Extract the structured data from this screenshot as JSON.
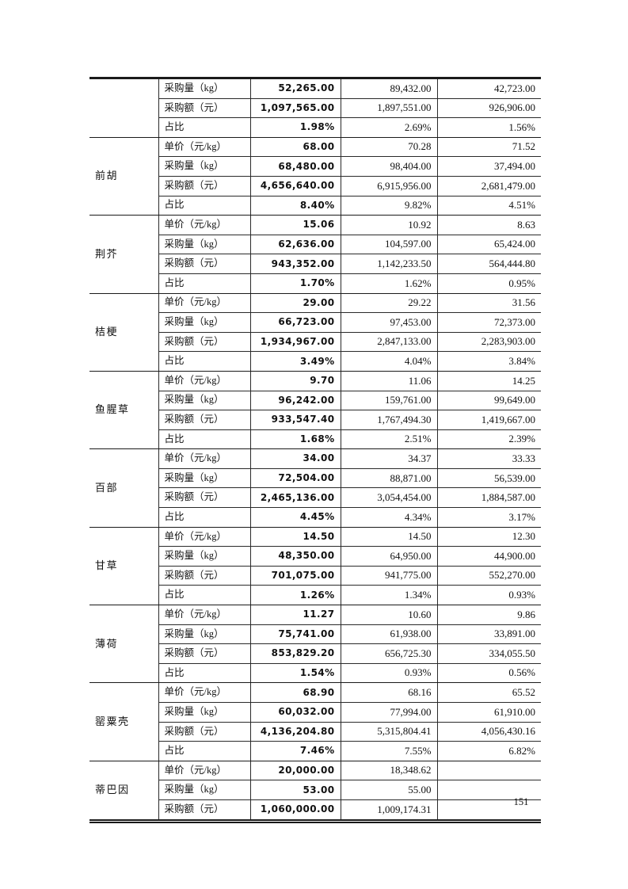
{
  "page": {
    "number": "151"
  },
  "table": {
    "row_labels": {
      "unit_price": "单价（元/kg）",
      "quantity": "采购量（kg）",
      "amount": "采购额（元）",
      "share": "占比"
    },
    "groups": [
      {
        "name": "",
        "rows": [
          {
            "label": "采购量（kg）",
            "values": [
              "52,265.00",
              "89,432.00",
              "42,723.00"
            ]
          },
          {
            "label": "采购额（元）",
            "values": [
              "1,097,565.00",
              "1,897,551.00",
              "926,906.00"
            ]
          },
          {
            "label": "占比",
            "values": [
              "1.98%",
              "2.69%",
              "1.56%"
            ]
          }
        ]
      },
      {
        "name": "前胡",
        "rows": [
          {
            "label": "单价（元/kg）",
            "values": [
              "68.00",
              "70.28",
              "71.52"
            ]
          },
          {
            "label": "采购量（kg）",
            "values": [
              "68,480.00",
              "98,404.00",
              "37,494.00"
            ]
          },
          {
            "label": "采购额（元）",
            "values": [
              "4,656,640.00",
              "6,915,956.00",
              "2,681,479.00"
            ]
          },
          {
            "label": "占比",
            "values": [
              "8.40%",
              "9.82%",
              "4.51%"
            ]
          }
        ]
      },
      {
        "name": "荆芥",
        "rows": [
          {
            "label": "单价（元/kg）",
            "values": [
              "15.06",
              "10.92",
              "8.63"
            ]
          },
          {
            "label": "采购量（kg）",
            "values": [
              "62,636.00",
              "104,597.00",
              "65,424.00"
            ]
          },
          {
            "label": "采购额（元）",
            "values": [
              "943,352.00",
              "1,142,233.50",
              "564,444.80"
            ]
          },
          {
            "label": "占比",
            "values": [
              "1.70%",
              "1.62%",
              "0.95%"
            ]
          }
        ]
      },
      {
        "name": "桔梗",
        "rows": [
          {
            "label": "单价（元/kg）",
            "values": [
              "29.00",
              "29.22",
              "31.56"
            ]
          },
          {
            "label": "采购量（kg）",
            "values": [
              "66,723.00",
              "97,453.00",
              "72,373.00"
            ]
          },
          {
            "label": "采购额（元）",
            "values": [
              "1,934,967.00",
              "2,847,133.00",
              "2,283,903.00"
            ]
          },
          {
            "label": "占比",
            "values": [
              "3.49%",
              "4.04%",
              "3.84%"
            ]
          }
        ]
      },
      {
        "name": "鱼腥草",
        "rows": [
          {
            "label": "单价（元/kg）",
            "values": [
              "9.70",
              "11.06",
              "14.25"
            ]
          },
          {
            "label": "采购量（kg）",
            "values": [
              "96,242.00",
              "159,761.00",
              "99,649.00"
            ]
          },
          {
            "label": "采购额（元）",
            "values": [
              "933,547.40",
              "1,767,494.30",
              "1,419,667.00"
            ]
          },
          {
            "label": "占比",
            "values": [
              "1.68%",
              "2.51%",
              "2.39%"
            ]
          }
        ]
      },
      {
        "name": "百部",
        "rows": [
          {
            "label": "单价（元/kg）",
            "values": [
              "34.00",
              "34.37",
              "33.33"
            ]
          },
          {
            "label": "采购量（kg）",
            "values": [
              "72,504.00",
              "88,871.00",
              "56,539.00"
            ]
          },
          {
            "label": "采购额（元）",
            "values": [
              "2,465,136.00",
              "3,054,454.00",
              "1,884,587.00"
            ]
          },
          {
            "label": "占比",
            "values": [
              "4.45%",
              "4.34%",
              "3.17%"
            ]
          }
        ]
      },
      {
        "name": "甘草",
        "rows": [
          {
            "label": "单价（元/kg）",
            "values": [
              "14.50",
              "14.50",
              "12.30"
            ]
          },
          {
            "label": "采购量（kg）",
            "values": [
              "48,350.00",
              "64,950.00",
              "44,900.00"
            ]
          },
          {
            "label": "采购额（元）",
            "values": [
              "701,075.00",
              "941,775.00",
              "552,270.00"
            ]
          },
          {
            "label": "占比",
            "values": [
              "1.26%",
              "1.34%",
              "0.93%"
            ]
          }
        ]
      },
      {
        "name": "薄荷",
        "rows": [
          {
            "label": "单价（元/kg）",
            "values": [
              "11.27",
              "10.60",
              "9.86"
            ]
          },
          {
            "label": "采购量（kg）",
            "values": [
              "75,741.00",
              "61,938.00",
              "33,891.00"
            ]
          },
          {
            "label": "采购额（元）",
            "values": [
              "853,829.20",
              "656,725.30",
              "334,055.50"
            ]
          },
          {
            "label": "占比",
            "values": [
              "1.54%",
              "0.93%",
              "0.56%"
            ]
          }
        ]
      },
      {
        "name": "罂粟壳",
        "rows": [
          {
            "label": "单价（元/kg）",
            "values": [
              "68.90",
              "68.16",
              "65.52"
            ]
          },
          {
            "label": "采购量（kg）",
            "values": [
              "60,032.00",
              "77,994.00",
              "61,910.00"
            ]
          },
          {
            "label": "采购额（元）",
            "values": [
              "4,136,204.80",
              "5,315,804.41",
              "4,056,430.16"
            ]
          },
          {
            "label": "占比",
            "values": [
              "7.46%",
              "7.55%",
              "6.82%"
            ]
          }
        ]
      },
      {
        "name": "蒂巴因",
        "rows": [
          {
            "label": "单价（元/kg）",
            "values": [
              "20,000.00",
              "18,348.62",
              ""
            ]
          },
          {
            "label": "采购量（kg）",
            "values": [
              "53.00",
              "55.00",
              ""
            ]
          },
          {
            "label": "采购额（元）",
            "values": [
              "1,060,000.00",
              "1,009,174.31",
              ""
            ]
          }
        ]
      }
    ]
  }
}
